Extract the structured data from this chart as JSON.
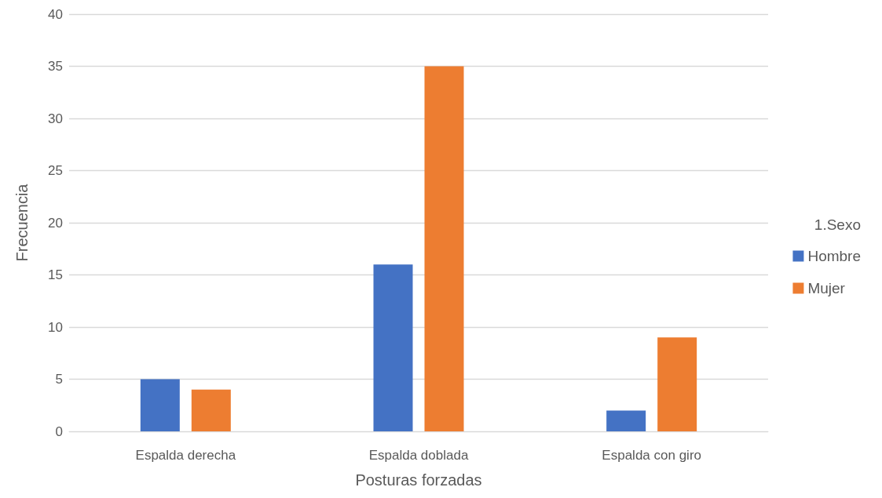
{
  "chart_data": {
    "type": "bar",
    "xlabel": "Posturas forzadas",
    "ylabel": "Frecuencia",
    "legend_title": "1.Sexo",
    "categories": [
      "Espalda derecha",
      "Espalda doblada",
      "Espalda con giro"
    ],
    "series": [
      {
        "name": "Hombre",
        "color": "#4472c4",
        "values": [
          5,
          16,
          2
        ]
      },
      {
        "name": "Mujer",
        "color": "#ed7d31",
        "values": [
          4,
          35,
          9
        ]
      }
    ],
    "ylim": [
      0,
      40
    ],
    "yticks": [
      0,
      5,
      10,
      15,
      20,
      25,
      30,
      35,
      40
    ],
    "grid": "y",
    "legend": "right"
  }
}
